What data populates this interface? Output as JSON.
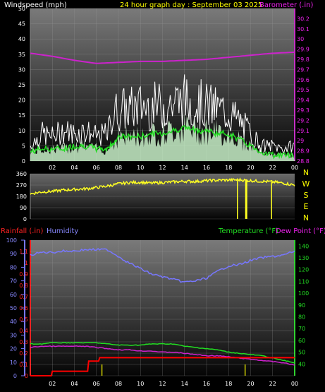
{
  "header": {
    "wind_title": "Windspeed (mph)",
    "graph_title": "24 hour graph day : September 03 2025",
    "baro_title": "Barometer (.in)"
  },
  "colors": {
    "wind_gust": "#ffffff",
    "wind_avg": "#22dd22",
    "wind_fill": "#c8f0c8",
    "barometer": "#cc22cc",
    "direction": "#ffff22",
    "rainfall": "#ff0000",
    "humidity": "#7777ff",
    "temperature": "#22dd22",
    "dewpoint": "#cc22cc",
    "rain_tick": "#cccc00",
    "rain_axis_label": "#ff2222",
    "humidity_label": "#8888ff",
    "temp_label": "#22dd22",
    "dew_label": "#ee22ee"
  },
  "bottom_labels": {
    "rainfall": "Rainfall (.in)",
    "humidity": "Humidity",
    "temperature": "Temperature (°F)",
    "dewpoint": "Dew Point (°F)"
  },
  "chart_data": [
    {
      "id": "wind_baro",
      "type": "line",
      "title": "24 hour graph day : September 03 2025",
      "ylabel_left": "Windspeed (mph)",
      "ylabel_right": "Barometer (.in)",
      "x_ticks": [
        "02",
        "04",
        "06",
        "08",
        "10",
        "12",
        "14",
        "16",
        "18",
        "20",
        "22",
        "00"
      ],
      "xlim": [
        0,
        24
      ],
      "ylim_left": [
        0,
        50
      ],
      "yticks_left": [
        0,
        5,
        10,
        15,
        20,
        25,
        30,
        35,
        40,
        45,
        50
      ],
      "ylim_right": [
        28.8,
        30.3
      ],
      "yticks_right": [
        "28.8",
        "28.9",
        "29",
        "29.1",
        "29.2",
        "29.3",
        "29.4",
        "29.5",
        "29.6",
        "29.7",
        "29.8",
        "29.9",
        "30",
        "30.1",
        "30.2"
      ],
      "series": [
        {
          "key": "gust",
          "x": [
            0,
            1,
            2,
            3,
            4,
            5,
            6,
            7,
            7.5,
            8,
            9,
            10,
            11,
            12,
            13,
            14,
            14.5,
            15,
            16,
            17,
            18,
            19,
            20,
            21,
            22,
            23,
            24
          ],
          "values": [
            5,
            9,
            8,
            10,
            9,
            10,
            8,
            9,
            15,
            17,
            17,
            18,
            18,
            18,
            19,
            20,
            19,
            19,
            18,
            17,
            16,
            13,
            9,
            5,
            5,
            4,
            5
          ]
        },
        {
          "key": "avg",
          "x": [
            0,
            1,
            2,
            3,
            4,
            5,
            6,
            7,
            7.5,
            8,
            9,
            10,
            11,
            12,
            13,
            14,
            15,
            16,
            17,
            18,
            19,
            20,
            21,
            22,
            23,
            24
          ],
          "values": [
            3,
            4,
            4,
            4,
            5,
            5,
            4,
            4,
            6,
            8,
            8,
            8,
            9,
            9,
            10,
            11,
            10,
            10,
            9,
            9,
            7,
            5,
            3,
            2,
            2,
            2
          ]
        },
        {
          "key": "baro",
          "x": [
            0,
            2,
            4,
            6,
            8,
            10,
            12,
            14,
            16,
            18,
            20,
            22,
            24
          ],
          "values": [
            29.86,
            29.83,
            29.79,
            29.76,
            29.77,
            29.78,
            29.78,
            29.79,
            29.8,
            29.82,
            29.84,
            29.86,
            29.87
          ]
        }
      ]
    },
    {
      "id": "direction",
      "type": "line",
      "y_ticks": [
        0,
        90,
        180,
        270,
        360
      ],
      "ylim": [
        0,
        360
      ],
      "compass": [
        "N",
        "W",
        "S",
        "E",
        "N"
      ],
      "x_ticks": [],
      "series": [
        {
          "key": "dir",
          "x": [
            0,
            1,
            2,
            3,
            4,
            5,
            6,
            7,
            8,
            9,
            10,
            11,
            12,
            13,
            14,
            15,
            16,
            17,
            18,
            19,
            20,
            21,
            22,
            23,
            24
          ],
          "values": [
            200,
            215,
            220,
            230,
            235,
            240,
            250,
            262,
            280,
            290,
            292,
            285,
            290,
            295,
            300,
            298,
            305,
            308,
            310,
            312,
            305,
            300,
            295,
            285,
            270
          ]
        }
      ],
      "dips": [
        18.8,
        19.6,
        21.9
      ]
    },
    {
      "id": "rain_hum_temp",
      "type": "line",
      "ylabel_left_rain": "Rainfall (.in)",
      "ylabel_left_hum": "Humidity",
      "ylabel_right_temp": "Temperature (°F)",
      "ylabel_right_dew": "Dew Point (°F)",
      "x_ticks": [
        "02",
        "04",
        "06",
        "08",
        "10",
        "12",
        "14",
        "16",
        "18",
        "20",
        "22",
        "00"
      ],
      "xlim": [
        0,
        24
      ],
      "yticks_hum": [
        0,
        10,
        20,
        30,
        40,
        50,
        60,
        70,
        80,
        90,
        100
      ],
      "ylim_hum": [
        0,
        100
      ],
      "yticks_rain": [
        "0",
        "0.1",
        "0.2",
        "0.3",
        "0.4",
        "0.5",
        "0.6",
        "0.7",
        "0.8",
        "0.9",
        "1",
        "1.1"
      ],
      "ylim_rain": [
        0,
        1.2
      ],
      "yticks_temp": [
        40,
        50,
        60,
        70,
        80,
        90,
        100,
        110,
        120,
        130,
        140
      ],
      "ylim_temp": [
        30,
        145
      ],
      "series": [
        {
          "key": "humidity",
          "x": [
            0,
            1,
            2,
            3,
            4,
            5,
            6,
            7,
            8,
            9,
            10,
            11,
            12,
            13,
            14,
            15,
            16,
            17,
            18,
            19,
            20,
            21,
            22,
            23,
            24
          ],
          "values": [
            89,
            91,
            91,
            92,
            92,
            93,
            93,
            93,
            88,
            83,
            79,
            75,
            73,
            71,
            69,
            70,
            72,
            77,
            81,
            82,
            85,
            87,
            88,
            89,
            92
          ]
        },
        {
          "key": "temperature",
          "x": [
            0,
            1,
            2,
            3,
            4,
            5,
            6,
            7,
            8,
            9,
            10,
            11,
            12,
            13,
            14,
            15,
            16,
            17,
            18,
            19,
            20,
            21,
            22,
            23,
            24
          ],
          "values": [
            57,
            57,
            58,
            58,
            58,
            58,
            58,
            57,
            56,
            56,
            56,
            57,
            57,
            57,
            55,
            54,
            53,
            52,
            50,
            49,
            48,
            47,
            45,
            43,
            41
          ]
        },
        {
          "key": "dewpoint",
          "x": [
            0,
            1,
            2,
            3,
            4,
            5,
            6,
            7,
            8,
            9,
            10,
            11,
            12,
            13,
            14,
            15,
            16,
            17,
            18,
            19,
            20,
            21,
            22,
            23,
            24
          ],
          "values": [
            54,
            55,
            55,
            55,
            55,
            55,
            54,
            53,
            52,
            52,
            51,
            51,
            50,
            50,
            49,
            48,
            47,
            47,
            46,
            45,
            44,
            43,
            42,
            41,
            39
          ]
        },
        {
          "key": "rainfall",
          "x": [
            0,
            1.9,
            2,
            5.2,
            5.3,
            6.2,
            6.3,
            24
          ],
          "values": [
            0,
            0,
            0.04,
            0.04,
            0.13,
            0.13,
            0.16,
            0.16
          ]
        }
      ],
      "rain_ticks_x": [
        6.5,
        19.5
      ]
    }
  ]
}
